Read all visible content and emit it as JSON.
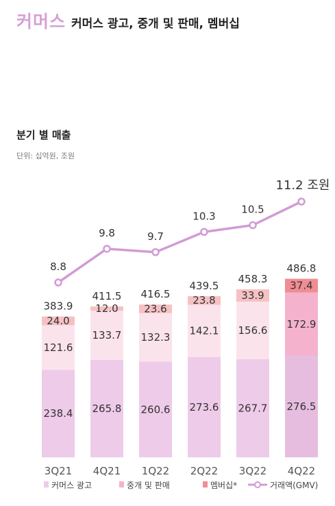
{
  "header": {
    "section": "커머스",
    "subtitle": "커머스 광고, 중개 및 판매, 멤버십"
  },
  "chart_title": "분기 별 매출",
  "unit": "단위: 십억원, 조원",
  "colors": {
    "ad": "#eecbe9",
    "brokerage": "#fbe3ec",
    "brokerage_4q22": "#f4b2cd",
    "membership": "#f6c1c3",
    "membership_4q22": "#f18d92",
    "gmv": "#d29bd6",
    "ad_4q22": "#e6bddf"
  },
  "chart_data": {
    "type": "bar",
    "stacked": true,
    "categories": [
      "3Q21",
      "4Q21",
      "1Q22",
      "2Q22",
      "3Q22",
      "4Q22"
    ],
    "series": [
      {
        "name": "커머스 광고",
        "values": [
          238.4,
          265.8,
          260.6,
          273.6,
          267.7,
          276.5
        ]
      },
      {
        "name": "중개 및 판매",
        "values": [
          121.6,
          133.7,
          132.3,
          142.1,
          156.6,
          172.9
        ]
      },
      {
        "name": "멤버십*",
        "values": [
          24.0,
          12.0,
          23.6,
          23.8,
          33.9,
          37.4
        ]
      }
    ],
    "totals": [
      383.9,
      411.5,
      416.5,
      439.5,
      458.3,
      486.8
    ],
    "value_labels": {
      "ad": [
        "238.4",
        "265.8",
        "260.6",
        "273.6",
        "267.7",
        "276.5"
      ],
      "brokerage": [
        "121.6",
        "133.7",
        "132.3",
        "142.1",
        "156.6",
        "172.9"
      ],
      "membership": [
        "24.0",
        "12.0",
        "23.6",
        "23.8",
        "33.9",
        "37.4"
      ],
      "totals": [
        "383.9",
        "411.5",
        "416.5",
        "439.5",
        "458.3",
        "486.8"
      ]
    },
    "line": {
      "name": "거래액(GMV)",
      "values": [
        8.8,
        9.8,
        9.7,
        10.3,
        10.5,
        11.2
      ],
      "labels": [
        "8.8",
        "9.8",
        "9.7",
        "10.3",
        "10.5",
        "11.2"
      ],
      "last_unit": "조원"
    },
    "legend": [
      "커머스 광고",
      "중개 및 판매",
      "멤버십*",
      "거래액(GMV)"
    ],
    "legend_position": "bottom",
    "grid": false
  }
}
